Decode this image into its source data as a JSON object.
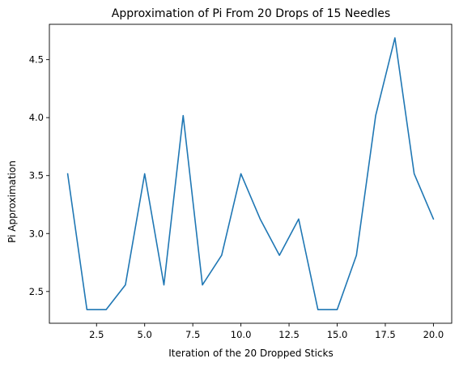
{
  "chart_data": {
    "type": "line",
    "title": "Approximation of Pi From 20 Drops of 15 Needles",
    "xlabel": "Iteration of the 20 Dropped Sticks",
    "ylabel": "Pi Approximation",
    "x": [
      1,
      2,
      3,
      4,
      5,
      6,
      7,
      8,
      9,
      10,
      11,
      12,
      13,
      14,
      15,
      16,
      17,
      18,
      19,
      20
    ],
    "series": [
      {
        "values": [
          3.5156,
          2.3438,
          2.3438,
          2.5568,
          3.5156,
          2.5568,
          4.0179,
          2.5568,
          2.8125,
          3.5156,
          3.125,
          2.8125,
          3.125,
          2.3438,
          2.3438,
          2.8125,
          4.0179,
          4.6875,
          3.5156,
          3.125
        ],
        "color": "#1f77b4"
      }
    ],
    "xlim": [
      0.05,
      20.95
    ],
    "ylim": [
      2.226,
      4.805
    ],
    "xticks": [
      2.5,
      5.0,
      7.5,
      10.0,
      12.5,
      15.0,
      17.5,
      20.0
    ],
    "xtick_labels": [
      "2.5",
      "5.0",
      "7.5",
      "10.0",
      "12.5",
      "15.0",
      "17.5",
      "20.0"
    ],
    "yticks": [
      2.5,
      3.0,
      3.5,
      4.0,
      4.5
    ],
    "ytick_labels": [
      "2.5",
      "3.0",
      "3.5",
      "4.0",
      "4.5"
    ],
    "grid": false,
    "legend": "none"
  }
}
